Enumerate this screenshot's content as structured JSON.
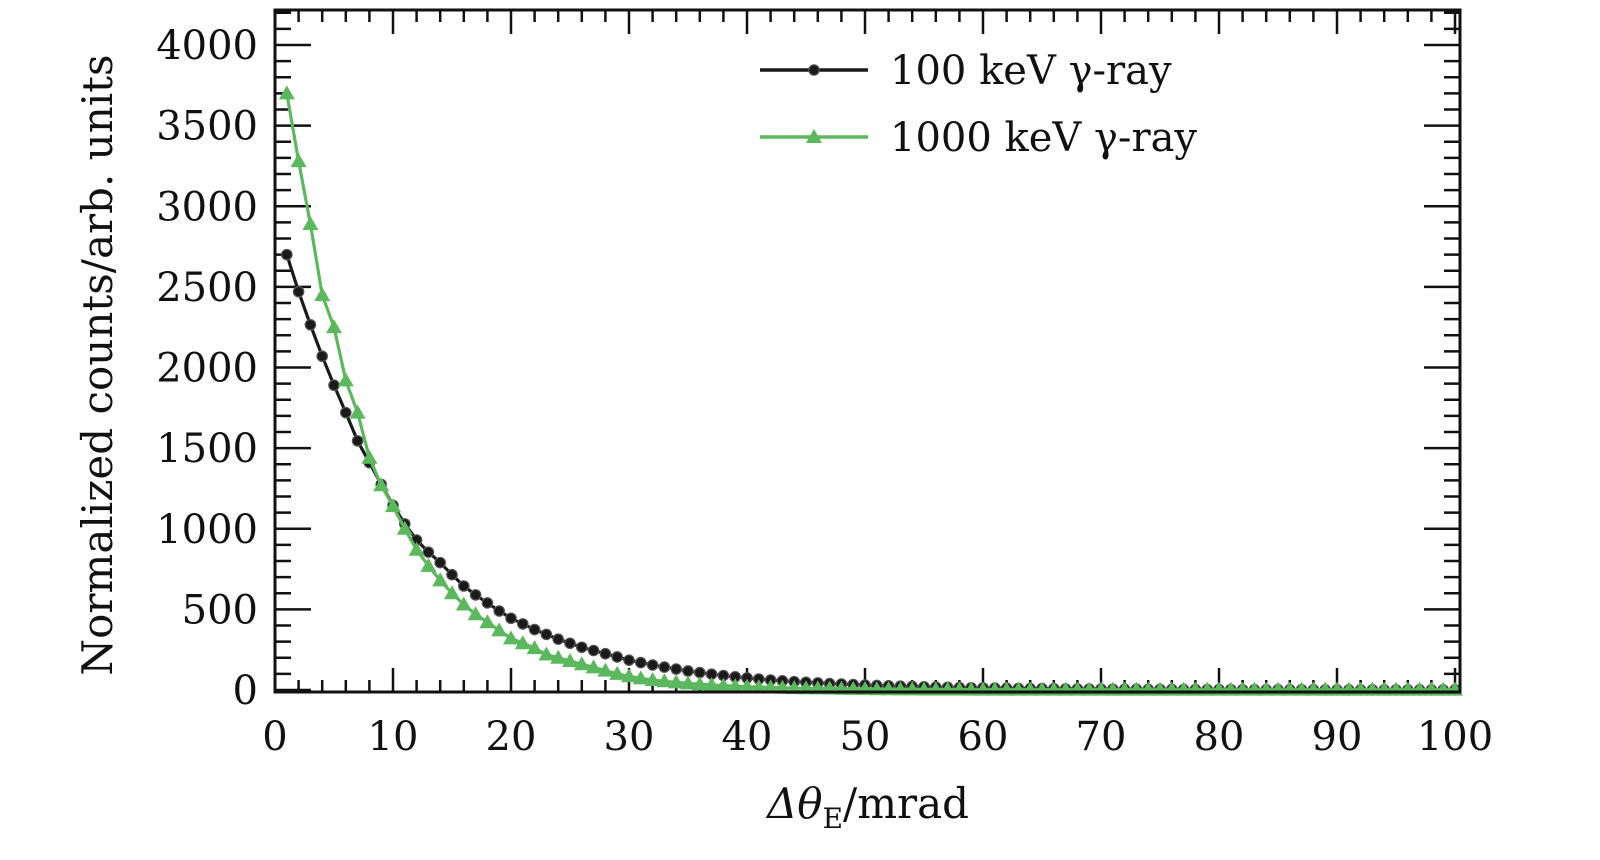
{
  "chart_data": {
    "type": "line",
    "title": "",
    "xlabel": "Δθ",
    "xlabel_sub": "E",
    "xlabel_unit": "/mrad",
    "ylabel": "Normalized counts/arb. units",
    "xlim": [
      0,
      100
    ],
    "ylim": [
      0,
      4200
    ],
    "x_ticks": [
      0,
      10,
      20,
      30,
      40,
      50,
      60,
      70,
      80,
      90,
      100
    ],
    "y_ticks": [
      0,
      500,
      1000,
      1500,
      2000,
      2500,
      3000,
      3500,
      4000
    ],
    "grid": false,
    "legend_position": "top-right",
    "series": [
      {
        "name": "100 keV γ-ray",
        "color": "#1a1a1a",
        "marker": "circle",
        "x": [
          1,
          2,
          3,
          4,
          5,
          6,
          7,
          8,
          9,
          10,
          11,
          12,
          13,
          14,
          15,
          16,
          17,
          18,
          19,
          20,
          21,
          22,
          23,
          24,
          25,
          26,
          27,
          28,
          29,
          30,
          31,
          32,
          33,
          34,
          35,
          36,
          37,
          38,
          39,
          40,
          41,
          42,
          43,
          44,
          45,
          46,
          47,
          48,
          49,
          50,
          51,
          52,
          53,
          54,
          55,
          56,
          57,
          58,
          59,
          60,
          61,
          62,
          63,
          64,
          65,
          66,
          67,
          68,
          69,
          70,
          71,
          72,
          73,
          74,
          75,
          76,
          77,
          78,
          79,
          80,
          81,
          82,
          83,
          84,
          85,
          86,
          87,
          88,
          89,
          90,
          91,
          92,
          93,
          94,
          95,
          96,
          97,
          98,
          99,
          100
        ],
        "y": [
          2700,
          2470,
          2265,
          2070,
          1890,
          1720,
          1545,
          1410,
          1275,
          1145,
          1030,
          930,
          855,
          790,
          715,
          645,
          590,
          540,
          490,
          445,
          410,
          375,
          345,
          315,
          290,
          265,
          245,
          225,
          205,
          185,
          170,
          155,
          142,
          130,
          118,
          108,
          98,
          90,
          82,
          75,
          68,
          62,
          57,
          52,
          48,
          44,
          40,
          37,
          34,
          31,
          28,
          26,
          24,
          22,
          20,
          18,
          17,
          15,
          14,
          13,
          12,
          11,
          10,
          9,
          9,
          8,
          7,
          7,
          6,
          6,
          5,
          5,
          5,
          4,
          4,
          4,
          3,
          3,
          3,
          3,
          3,
          2,
          2,
          2,
          2,
          2,
          2,
          2,
          1,
          1,
          1,
          1,
          1,
          1,
          1,
          1,
          1,
          1,
          1,
          1
        ]
      },
      {
        "name": "1000 keV γ-ray",
        "color": "#5cb85c",
        "marker": "triangle",
        "x": [
          1,
          2,
          3,
          4,
          5,
          6,
          7,
          8,
          9,
          10,
          11,
          12,
          13,
          14,
          15,
          16,
          17,
          18,
          19,
          20,
          21,
          22,
          23,
          24,
          25,
          26,
          27,
          28,
          29,
          30,
          31,
          32,
          33,
          34,
          35,
          36,
          37,
          38,
          39,
          40,
          41,
          42,
          43,
          44,
          45,
          46,
          47,
          48,
          49,
          50,
          51,
          52,
          53,
          54,
          55,
          56,
          57,
          58,
          59,
          60,
          61,
          62,
          63,
          64,
          65,
          66,
          67,
          68,
          69,
          70,
          71,
          72,
          73,
          74,
          75,
          76,
          77,
          78,
          79,
          80,
          81,
          82,
          83,
          84,
          85,
          86,
          87,
          88,
          89,
          90,
          91,
          92,
          93,
          94,
          95,
          96,
          97,
          98,
          99,
          100
        ],
        "y": [
          3700,
          3280,
          2890,
          2450,
          2250,
          1920,
          1720,
          1440,
          1270,
          1140,
          1000,
          870,
          770,
          680,
          600,
          530,
          470,
          420,
          370,
          320,
          290,
          260,
          220,
          200,
          180,
          160,
          140,
          120,
          100,
          85,
          72,
          62,
          54,
          47,
          41,
          36,
          31,
          27,
          24,
          21,
          18,
          16,
          14,
          12,
          11,
          10,
          9,
          8,
          7,
          6,
          5,
          5,
          4,
          4,
          3,
          3,
          3,
          3,
          2,
          2,
          2,
          2,
          2,
          2,
          2,
          2,
          2,
          2,
          2,
          2,
          2,
          2,
          2,
          2,
          2,
          2,
          2,
          2,
          2,
          2,
          2,
          2,
          2,
          2,
          2,
          2,
          2,
          2,
          2,
          2,
          2,
          2,
          2,
          2,
          2,
          2,
          2,
          2,
          2,
          2
        ]
      }
    ]
  }
}
